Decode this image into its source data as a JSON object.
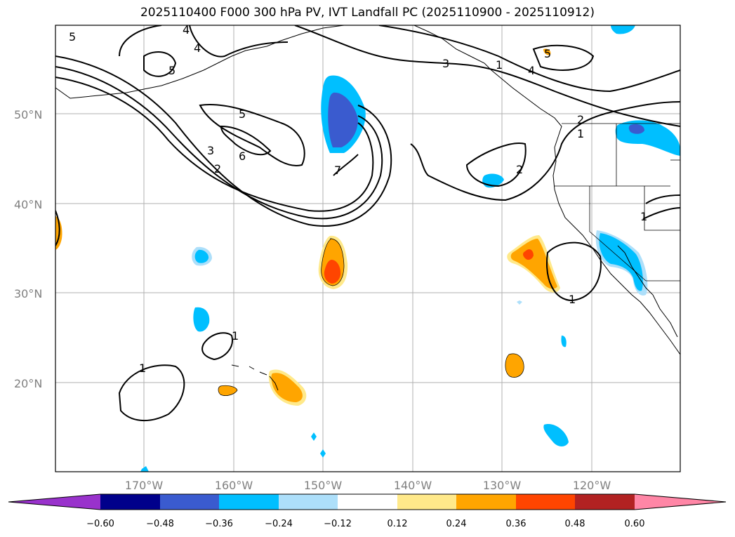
{
  "title": "2025110400 F000 300 hPa PV, IVT Landfall PC (2025110900 - 2025110912)",
  "colors": {
    "neg_0_60_below": "#9932CC",
    "neg_0_60_0_48": "#00008B",
    "neg_0_48_0_36": "#3A5BCF",
    "neg_0_36_0_24": "#00BFFF",
    "neg_0_24_0_12": "#ADDFFA",
    "neutral": "#FFFFFF",
    "pos_0_12_0_24": "#FFE98A",
    "pos_0_24_0_36": "#FFA500",
    "pos_0_36_0_48": "#FF4500",
    "pos_0_48_0_60": "#B22222",
    "pos_0_60_above": "#FF86A6",
    "grid": "#B0B0B0",
    "contour": "#000000"
  },
  "axes": {
    "lat_labels": [
      "20°N",
      "30°N",
      "40°N",
      "50°N"
    ],
    "lon_labels": [
      "170°W",
      "160°W",
      "150°W",
      "140°W",
      "130°W",
      "120°W"
    ]
  },
  "colorbar": {
    "tick_labels": [
      "−0.60",
      "−0.48",
      "−0.36",
      "−0.24",
      "−0.12",
      "0.12",
      "0.24",
      "0.36",
      "0.48",
      "0.60"
    ]
  },
  "contour_labels": [
    "5",
    "4",
    "5",
    "3",
    "4",
    "5",
    "6",
    "3",
    "2",
    "7",
    "2",
    "1",
    "4",
    "1",
    "1",
    "1",
    "1",
    "2",
    "1",
    "5"
  ]
}
